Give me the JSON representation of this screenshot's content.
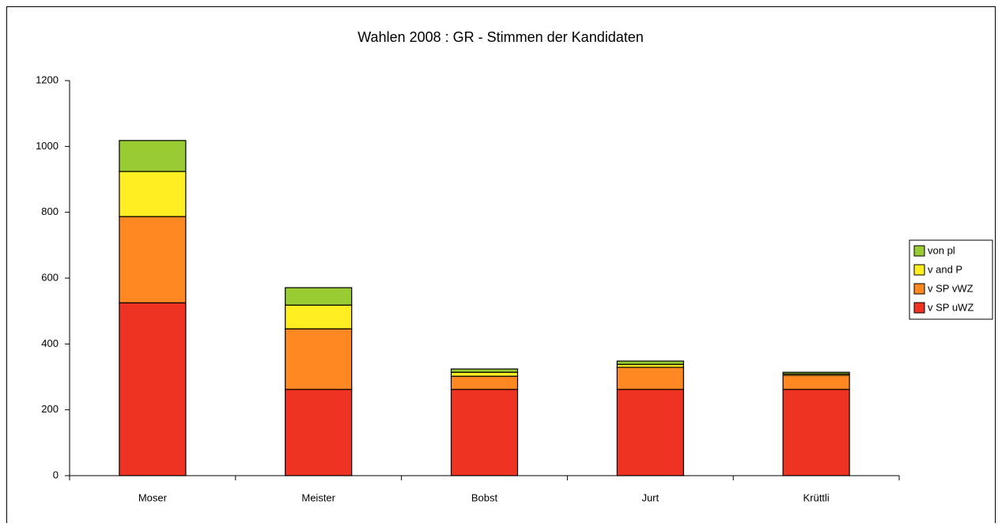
{
  "chart_data": {
    "type": "stacked_bar",
    "title": "Wahlen 2008 : GR - Stimmen der Kandidaten",
    "categories": [
      "Moser",
      "Meister",
      "Bobst",
      "Jurt",
      "Krüttli"
    ],
    "series": [
      {
        "name": "v SP uWZ",
        "color": "#ee3322",
        "values": [
          525,
          262,
          262,
          262,
          262
        ]
      },
      {
        "name": "v SP vWZ",
        "color": "#ff8822",
        "values": [
          262,
          184,
          40,
          67,
          43
        ]
      },
      {
        "name": "v and P",
        "color": "#ffee22",
        "values": [
          137,
          72,
          12,
          9,
          4
        ]
      },
      {
        "name": "von pl",
        "color": "#99cc33",
        "values": [
          94,
          53,
          10,
          10,
          5
        ]
      }
    ],
    "ylim": [
      0,
      1200
    ],
    "yticks": [
      0,
      200,
      400,
      600,
      800,
      1000,
      1200
    ],
    "legend": "right"
  }
}
